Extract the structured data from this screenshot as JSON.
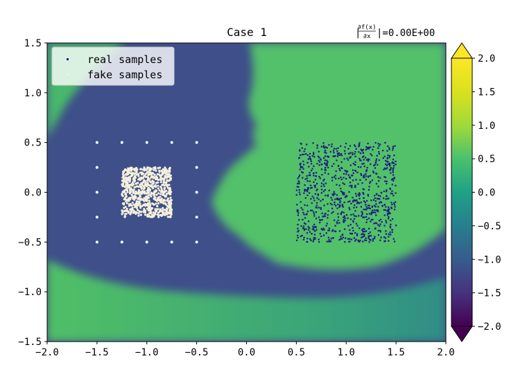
{
  "chart_data": {
    "type": "scatter",
    "title": "Case 1",
    "annotation": {
      "prefix": "|",
      "numerator": "∂f(x)",
      "denominator": "∂x",
      "suffix": "|=0.00E+00"
    },
    "xlim": [
      -2.0,
      2.0
    ],
    "ylim": [
      -1.5,
      1.5
    ],
    "x_ticks": [
      "-2.0",
      "-1.5",
      "-1.0",
      "-0.5",
      "0.0",
      "0.5",
      "1.0",
      "1.5",
      "2.0"
    ],
    "y_ticks": [
      "-1.5",
      "-1.0",
      "-0.5",
      "0.0",
      "0.5",
      "1.0",
      "1.5"
    ],
    "legend": {
      "placement": "top-left",
      "entries": [
        {
          "label": "real samples",
          "color": "#1a1a80"
        },
        {
          "label": "fake samples",
          "color": "#f5f0dc"
        }
      ]
    },
    "series": [
      {
        "name": "real samples",
        "kind": "uniform_square",
        "x_range": [
          0.5,
          1.5
        ],
        "y_range": [
          -0.5,
          0.5
        ],
        "count": 900,
        "color": "#1a1a80"
      },
      {
        "name": "fake samples",
        "kind": "uniform_square_plus_grid",
        "x_range": [
          -1.25,
          -0.75
        ],
        "y_range": [
          -0.25,
          0.25
        ],
        "count": 700,
        "grid_x": [
          -1.5,
          -1.25,
          -1.0,
          -0.75,
          -0.5
        ],
        "grid_y": [
          -0.5,
          -0.25,
          0.0,
          0.25,
          0.5
        ],
        "color": "#f5f0dc"
      }
    ],
    "colorbar": {
      "colormap": "viridis",
      "range": [
        -2.0,
        2.0
      ],
      "extend": "both",
      "ticks": [
        "2.0",
        "1.5",
        "1.0",
        "0.5",
        "0.0",
        "−0.5",
        "−1.0",
        "−1.5",
        "−2.0"
      ]
    },
    "background": {
      "description": "contour field of discriminator output",
      "dominant_levels": {
        "blue": -0.75,
        "green": 0.85
      }
    }
  }
}
